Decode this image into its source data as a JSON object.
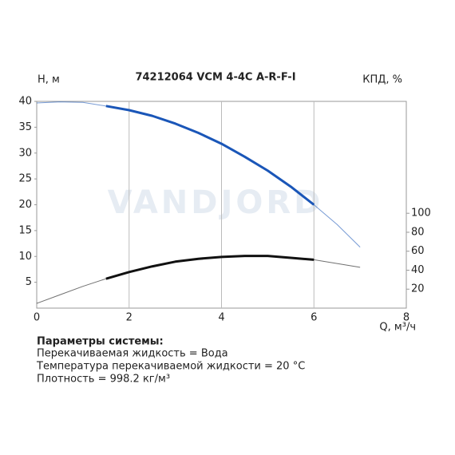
{
  "chart_data": {
    "type": "line",
    "title": "74212064 VCM 4-4C A-R-F-I",
    "watermark": "VANDJORD",
    "y_label": "H, м",
    "y2_label": "КПД, %",
    "x_label": "Q, м³/ч",
    "x": [
      0,
      0.5,
      1,
      1.5,
      2,
      2.5,
      3,
      3.5,
      4,
      4.5,
      5,
      5.5,
      6,
      6.5,
      7
    ],
    "series": [
      {
        "name": "H",
        "color": "#1a56b8",
        "values": [
          39.7,
          39.9,
          39.8,
          39.1,
          38.3,
          37.2,
          35.7,
          33.9,
          31.8,
          29.3,
          26.6,
          23.5,
          20.0,
          16.2,
          11.8
        ]
      },
      {
        "name": "КПД",
        "color": "#111111",
        "axis": "y2",
        "values": [
          5,
          14,
          23,
          31,
          38,
          44,
          49,
          52,
          54,
          55,
          55,
          53,
          51,
          47,
          43
        ]
      }
    ],
    "bold_range": [
      1.5,
      6
    ],
    "xlim": [
      0,
      8
    ],
    "xticks": [
      0,
      2,
      4,
      6,
      8
    ],
    "ylim": [
      0,
      40
    ],
    "yticks": [
      5,
      10,
      15,
      20,
      25,
      30,
      35,
      40
    ],
    "y2lim": [
      0,
      218
    ],
    "y2ticks": [
      20,
      40,
      60,
      80,
      100
    ],
    "grid": "x"
  },
  "info": {
    "heading": "Параметры системы:",
    "lines": [
      "Перекачиваемая жидкость = Вода",
      "Температура перекачиваемой жидкости = 20 °C",
      "Плотность = 998.2 кг/м³"
    ]
  }
}
